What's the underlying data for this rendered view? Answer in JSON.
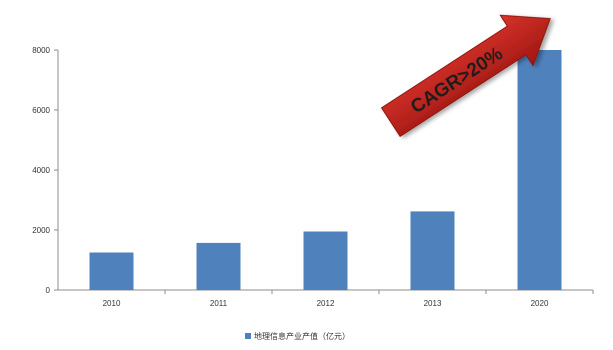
{
  "chart_data": {
    "type": "bar",
    "categories": [
      "2010",
      "2011",
      "2012",
      "2013",
      "2020"
    ],
    "series": [
      {
        "name": "地理信息产业产值（亿元）",
        "values": [
          1250,
          1570,
          1950,
          2620,
          8000
        ],
        "color": "#4f81bd"
      }
    ],
    "ylim": [
      0,
      8000
    ],
    "yticks": [
      0,
      2000,
      4000,
      6000,
      8000
    ],
    "grid": false,
    "legend_position": "bottom",
    "annotation": {
      "text": "CAGR>20%",
      "shape": "arrow",
      "color": "#c0221b"
    }
  }
}
